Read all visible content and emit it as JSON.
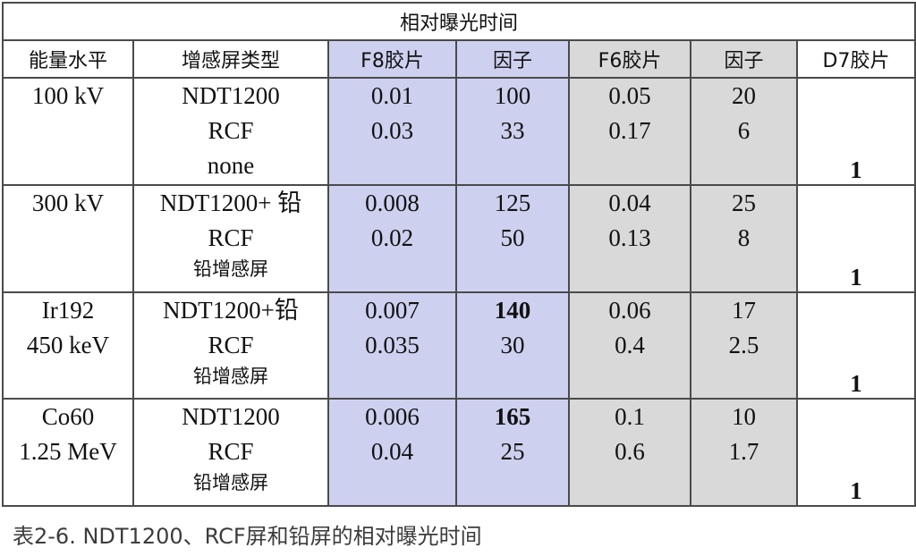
{
  "table": {
    "title": "相对曝光时间",
    "headers": [
      "能量水平",
      "增感屏类型",
      "F8胶片",
      "因子",
      "F6胶片",
      "因子",
      "D7胶片"
    ],
    "groups": [
      {
        "level": [
          "100 kV"
        ],
        "screens": [
          "NDT1200",
          "RCF",
          "none"
        ],
        "f8": [
          "0.01",
          "0.03"
        ],
        "f8_factor": [
          "100",
          "33"
        ],
        "f6": [
          "0.05",
          "0.17"
        ],
        "f6_factor": [
          "20",
          "6"
        ],
        "d7": "1"
      },
      {
        "level": [
          "300 kV"
        ],
        "screens": [
          "NDT1200+ 铅",
          "RCF",
          "铅增感屏"
        ],
        "f8": [
          "0.008",
          "0.02"
        ],
        "f8_factor": [
          "125",
          "50"
        ],
        "f6": [
          "0.04",
          "0.13"
        ],
        "f6_factor": [
          "25",
          "8"
        ],
        "d7": "1"
      },
      {
        "level": [
          "Ir192",
          "450 keV"
        ],
        "screens": [
          "NDT1200+铅",
          "RCF",
          "铅增感屏"
        ],
        "f8": [
          "0.007",
          "0.035"
        ],
        "f8_factor": [
          "140",
          "30"
        ],
        "f6": [
          "0.06",
          "0.4"
        ],
        "f6_factor": [
          "17",
          "2.5"
        ],
        "d7": "1"
      },
      {
        "level": [
          "Co60",
          "1.25 MeV"
        ],
        "screens": [
          "NDT1200",
          "RCF",
          "铅增感屏"
        ],
        "f8": [
          "0.006",
          "0.04"
        ],
        "f8_factor": [
          "165",
          "25"
        ],
        "f6": [
          "0.1",
          "0.6"
        ],
        "f6_factor": [
          "10",
          "1.7"
        ],
        "d7": "1"
      }
    ]
  },
  "caption": "表2-6. NDT1200、RCF屏和铅屏的相对曝光时间",
  "colors": {
    "f8_column": "#cdd1ef",
    "f6_column": "#d9d9d9",
    "border": "#4a4a4a"
  }
}
